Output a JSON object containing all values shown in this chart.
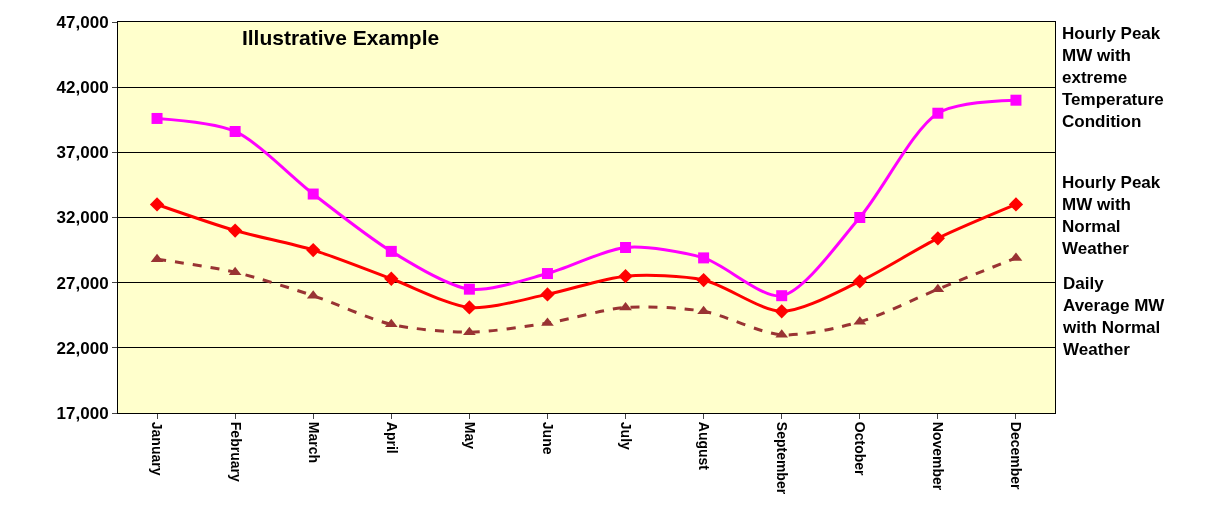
{
  "chart_data": {
    "type": "line",
    "title": "Illustrative Example",
    "categories": [
      "January",
      "February",
      "March",
      "April",
      "May",
      "June",
      "July",
      "August",
      "September",
      "October",
      "November",
      "December"
    ],
    "series": [
      {
        "name": "Hourly Peak MW with extreme Temperature Condition",
        "color": "#ff00ff",
        "marker": "square",
        "line_style": "solid",
        "values": [
          39600,
          38600,
          33800,
          29400,
          26500,
          27700,
          29700,
          28900,
          26000,
          32000,
          40000,
          41000
        ]
      },
      {
        "name": "Hourly Peak MW with Normal Weather",
        "color": "#ff0000",
        "marker": "diamond",
        "line_style": "solid",
        "values": [
          33000,
          31000,
          29500,
          27300,
          25100,
          26100,
          27500,
          27200,
          24800,
          27100,
          30400,
          33000
        ]
      },
      {
        "name": "Daily Average MW with Normal Weather",
        "color": "#993333",
        "marker": "triangle",
        "line_style": "dashed",
        "values": [
          28800,
          27800,
          26000,
          23800,
          23200,
          23900,
          25100,
          24800,
          23000,
          24000,
          26500,
          28900
        ]
      }
    ],
    "ylim": [
      17000,
      47000
    ],
    "yticks": [
      {
        "value": 17000,
        "label": "17,000"
      },
      {
        "value": 22000,
        "label": "22,000"
      },
      {
        "value": 27000,
        "label": "27,000"
      },
      {
        "value": 32000,
        "label": "32,000"
      },
      {
        "value": 37000,
        "label": "37,000"
      },
      {
        "value": 42000,
        "label": "42,000"
      },
      {
        "value": 47000,
        "label": "47,000"
      }
    ],
    "grid": "y"
  }
}
